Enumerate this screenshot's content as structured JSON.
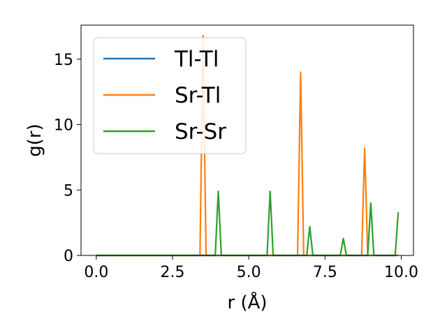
{
  "chart_data": {
    "type": "line",
    "title": "",
    "xlabel": "r (Å)",
    "ylabel": "g(r)",
    "xlim": [
      -0.5,
      10.4
    ],
    "ylim": [
      0,
      17.6
    ],
    "xticks": [
      0.0,
      2.5,
      5.0,
      7.5,
      10.0
    ],
    "xtick_labels": [
      "0.0",
      "2.5",
      "5.0",
      "7.5",
      "10.0"
    ],
    "yticks": [
      0,
      5,
      10,
      15
    ],
    "ytick_labels": [
      "0",
      "5",
      "10",
      "15"
    ],
    "grid": false,
    "legend_position": "top-left",
    "series": [
      {
        "name": "Tl-Tl",
        "color": "#1f77b4",
        "x": [
          0.0,
          9.9
        ],
        "y": [
          0,
          0
        ]
      },
      {
        "name": "Sr-Tl",
        "color": "#ff7f0e",
        "x": [
          0.0,
          3.4,
          3.5,
          3.6,
          3.7,
          6.6,
          6.7,
          6.8,
          8.7,
          8.8,
          8.9,
          9.9
        ],
        "y": [
          0,
          0,
          16.8,
          0,
          0,
          0,
          14.0,
          0,
          0,
          8.2,
          0,
          0
        ]
      },
      {
        "name": "Sr-Sr",
        "color": "#2ca02c",
        "x": [
          0.0,
          3.9,
          4.0,
          4.1,
          5.6,
          5.7,
          5.8,
          6.9,
          7.0,
          7.1,
          8.0,
          8.1,
          8.2,
          8.9,
          9.0,
          9.1,
          9.8,
          9.9
        ],
        "y": [
          0,
          0,
          4.9,
          0,
          0,
          4.9,
          0,
          0,
          2.2,
          0,
          0,
          1.3,
          0,
          0,
          4.0,
          0,
          0,
          3.3
        ]
      }
    ]
  }
}
